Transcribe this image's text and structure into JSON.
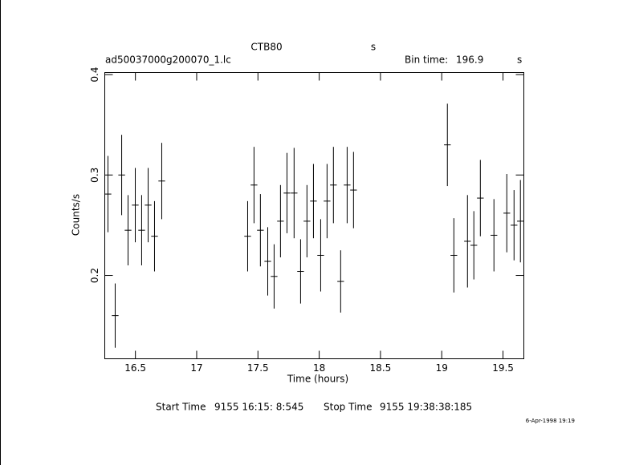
{
  "chart_data": {
    "type": "scatter",
    "title": "CTB80",
    "title_unit": "s",
    "filename": "ad50037000g200070_1.lc",
    "bin_time_label": "Bin time:",
    "bin_time": 196.9,
    "bin_time_unit": "s",
    "x_label": "Time (hours)",
    "y_label": "Counts/s",
    "start_label": "Start Time",
    "start_time": "9155 16:15: 8:545",
    "stop_label": "Stop Time",
    "stop_time": "9155 19:38:38:185",
    "timestamp": "6-Apr-1998 19:19",
    "color": "#000000",
    "xlim": [
      16.25,
      19.67
    ],
    "ylim": [
      0.117,
      0.402
    ],
    "xticks": [
      16.5,
      17,
      17.5,
      18,
      18.5,
      19,
      19.5
    ],
    "yticks": [
      0.2,
      0.3,
      0.4
    ],
    "x": [
      16.276,
      16.335,
      16.388,
      16.44,
      16.499,
      16.551,
      16.604,
      16.656,
      16.715,
      17.416,
      17.468,
      17.52,
      17.58,
      17.632,
      17.684,
      17.737,
      17.795,
      17.848,
      17.9,
      17.953,
      18.012,
      18.064,
      18.116,
      18.175,
      18.228,
      18.28,
      19.046,
      19.099,
      19.21,
      19.262,
      19.315,
      19.426,
      19.531,
      19.59,
      19.642
    ],
    "values": [
      0.281,
      0.16,
      0.3,
      0.245,
      0.27,
      0.245,
      0.27,
      0.239,
      0.294,
      0.239,
      0.29,
      0.245,
      0.214,
      0.199,
      0.254,
      0.282,
      0.282,
      0.204,
      0.254,
      0.274,
      0.22,
      0.274,
      0.29,
      0.194,
      0.29,
      0.285,
      0.33,
      0.22,
      0.234,
      0.23,
      0.277,
      0.24,
      0.262,
      0.25,
      0.254
    ],
    "yerr": [
      0.038,
      0.032,
      0.04,
      0.035,
      0.037,
      0.035,
      0.037,
      0.035,
      0.038,
      0.035,
      0.038,
      0.036,
      0.034,
      0.032,
      0.036,
      0.04,
      0.045,
      0.032,
      0.036,
      0.037,
      0.036,
      0.037,
      0.038,
      0.031,
      0.038,
      0.038,
      0.041,
      0.037,
      0.046,
      0.034,
      0.038,
      0.036,
      0.039,
      0.035,
      0.041
    ]
  }
}
